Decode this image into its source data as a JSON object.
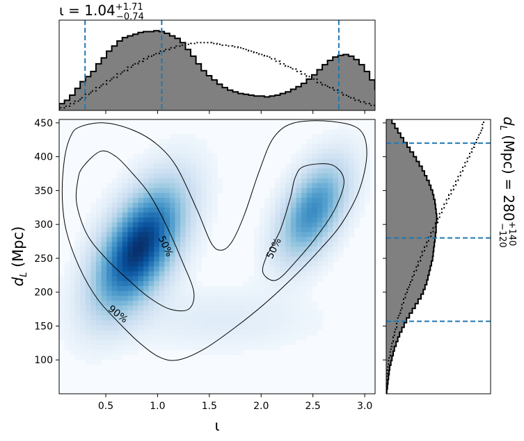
{
  "chart_data": {
    "type": "corner",
    "main_panel": {
      "kind": "2d-density-with-contours",
      "colormap": "Blues",
      "x_label": "ι",
      "y_label_symbol": "d",
      "y_label_sub": "L",
      "y_label_unit": "(Mpc)",
      "xlim": [
        0.05,
        3.1
      ],
      "ylim": [
        50,
        455
      ],
      "x_ticks": [
        0.5,
        1.0,
        1.5,
        2.0,
        2.5,
        3.0
      ],
      "x_tick_labels": [
        "0.5",
        "1.0",
        "1.5",
        "2.0",
        "2.5",
        "3.0"
      ],
      "y_ticks": [
        100,
        150,
        200,
        250,
        300,
        350,
        400,
        450
      ],
      "y_tick_labels": [
        "100",
        "150",
        "200",
        "250",
        "300",
        "350",
        "400",
        "450"
      ],
      "density_peaks": [
        {
          "x": 0.82,
          "y": 265,
          "sx": 0.28,
          "sy": 60,
          "rho": 0.55,
          "weight": 1.0
        },
        {
          "x": 2.5,
          "y": 320,
          "sx": 0.22,
          "sy": 48,
          "rho": 0.5,
          "weight": 0.6
        },
        {
          "x": 1.6,
          "y": 160,
          "sx": 0.6,
          "sy": 30,
          "rho": 0.0,
          "weight": 0.08
        }
      ],
      "contours": [
        {
          "label": "90%",
          "label_x": 0.62,
          "label_y": 168,
          "points": [
            [
              0.25,
              444
            ],
            [
              0.48,
              450
            ],
            [
              0.75,
              440
            ],
            [
              0.98,
              420
            ],
            [
              1.18,
              386
            ],
            [
              1.38,
              322
            ],
            [
              1.52,
              272
            ],
            [
              1.62,
              262
            ],
            [
              1.72,
              275
            ],
            [
              1.84,
              315
            ],
            [
              1.98,
              378
            ],
            [
              2.12,
              428
            ],
            [
              2.32,
              450
            ],
            [
              2.68,
              452
            ],
            [
              2.95,
              440
            ],
            [
              3.02,
              405
            ],
            [
              2.95,
              352
            ],
            [
              2.78,
              302
            ],
            [
              2.58,
              265
            ],
            [
              2.35,
              228
            ],
            [
              2.05,
              185
            ],
            [
              1.75,
              148
            ],
            [
              1.45,
              116
            ],
            [
              1.2,
              100
            ],
            [
              1.02,
              104
            ],
            [
              0.82,
              126
            ],
            [
              0.62,
              156
            ],
            [
              0.42,
              190
            ],
            [
              0.25,
              235
            ],
            [
              0.12,
              290
            ],
            [
              0.08,
              340
            ],
            [
              0.1,
              395
            ],
            [
              0.16,
              430
            ]
          ]
        },
        {
          "label": "50%",
          "label_x": 1.08,
          "label_y": 268,
          "points": [
            [
              0.28,
              385
            ],
            [
              0.45,
              408
            ],
            [
              0.6,
              400
            ],
            [
              0.76,
              375
            ],
            [
              0.92,
              345
            ],
            [
              1.08,
              300
            ],
            [
              1.24,
              245
            ],
            [
              1.35,
              200
            ],
            [
              1.3,
              175
            ],
            [
              1.12,
              175
            ],
            [
              0.92,
              192
            ],
            [
              0.72,
              218
            ],
            [
              0.5,
              250
            ],
            [
              0.32,
              285
            ],
            [
              0.22,
              330
            ],
            [
              0.23,
              365
            ]
          ]
        },
        {
          "label": "50%",
          "label_x": 2.12,
          "label_y": 265,
          "points": [
            [
              2.42,
              386
            ],
            [
              2.68,
              388
            ],
            [
              2.8,
              365
            ],
            [
              2.72,
              325
            ],
            [
              2.55,
              285
            ],
            [
              2.35,
              248
            ],
            [
              2.15,
              218
            ],
            [
              2.02,
              228
            ],
            [
              2.05,
              252
            ],
            [
              2.18,
              290
            ],
            [
              2.28,
              338
            ],
            [
              2.33,
              370
            ]
          ]
        }
      ]
    },
    "top_panel": {
      "kind": "step-histogram",
      "title_symbol": "ι",
      "title_text": " = 1.04",
      "title_upper": "+1.71",
      "title_lower": "−0.74",
      "x_start": 0.05,
      "bin_width": 0.0508,
      "posterior_hist": [
        0.08,
        0.12,
        0.18,
        0.26,
        0.34,
        0.4,
        0.46,
        0.55,
        0.62,
        0.7,
        0.76,
        0.82,
        0.86,
        0.88,
        0.9,
        0.92,
        0.93,
        0.93,
        0.94,
        0.93,
        0.91,
        0.88,
        0.85,
        0.8,
        0.72,
        0.64,
        0.55,
        0.47,
        0.41,
        0.36,
        0.31,
        0.27,
        0.24,
        0.22,
        0.2,
        0.19,
        0.18,
        0.17,
        0.17,
        0.16,
        0.17,
        0.18,
        0.2,
        0.22,
        0.25,
        0.28,
        0.32,
        0.37,
        0.42,
        0.48,
        0.54,
        0.59,
        0.63,
        0.65,
        0.66,
        0.64,
        0.6,
        0.54,
        0.46,
        0.36,
        0.25,
        0.14
      ],
      "prior_hist": [
        0.03,
        0.05,
        0.08,
        0.11,
        0.15,
        0.19,
        0.23,
        0.27,
        0.31,
        0.35,
        0.39,
        0.43,
        0.47,
        0.51,
        0.55,
        0.58,
        0.61,
        0.64,
        0.67,
        0.7,
        0.72,
        0.74,
        0.76,
        0.77,
        0.78,
        0.79,
        0.8,
        0.8,
        0.8,
        0.79,
        0.78,
        0.77,
        0.76,
        0.75,
        0.74,
        0.72,
        0.7,
        0.68,
        0.66,
        0.64,
        0.61,
        0.58,
        0.55,
        0.52,
        0.49,
        0.46,
        0.43,
        0.4,
        0.37,
        0.33,
        0.3,
        0.27,
        0.24,
        0.21,
        0.18,
        0.15,
        0.12,
        0.1,
        0.08,
        0.06,
        0.04,
        0.02
      ],
      "ymax": 1.0,
      "quantile_lines": [
        0.3,
        1.04,
        2.75
      ],
      "fill_color": "#808080",
      "line_color": "#1f77b4"
    },
    "right_panel": {
      "kind": "step-histogram-horizontal",
      "title_symbol": "d",
      "title_sub": "L",
      "title_text": " (Mpc) = 280",
      "title_upper": "+140",
      "title_lower": "−120",
      "y_start": 50,
      "bin_width": 7.0,
      "posterior_hist": [
        0.01,
        0.02,
        0.03,
        0.04,
        0.05,
        0.06,
        0.08,
        0.1,
        0.12,
        0.14,
        0.17,
        0.2,
        0.23,
        0.27,
        0.31,
        0.35,
        0.4,
        0.45,
        0.5,
        0.55,
        0.6,
        0.64,
        0.67,
        0.7,
        0.72,
        0.74,
        0.76,
        0.78,
        0.8,
        0.81,
        0.82,
        0.83,
        0.84,
        0.85,
        0.86,
        0.86,
        0.87,
        0.87,
        0.86,
        0.85,
        0.84,
        0.82,
        0.8,
        0.77,
        0.74,
        0.7,
        0.66,
        0.62,
        0.57,
        0.52,
        0.47,
        0.41,
        0.36,
        0.3,
        0.25,
        0.2,
        0.15,
        0.1
      ],
      "prior_hist": [
        0.0,
        0.0,
        0.01,
        0.01,
        0.02,
        0.03,
        0.04,
        0.05,
        0.07,
        0.08,
        0.1,
        0.12,
        0.14,
        0.16,
        0.18,
        0.2,
        0.22,
        0.25,
        0.27,
        0.3,
        0.33,
        0.36,
        0.39,
        0.42,
        0.45,
        0.48,
        0.52,
        0.55,
        0.59,
        0.62,
        0.66,
        0.7,
        0.73,
        0.77,
        0.81,
        0.85,
        0.89,
        0.92,
        0.96,
        1.0,
        1.04,
        1.08,
        1.12,
        1.16,
        1.2,
        1.24,
        1.28,
        1.32,
        1.36,
        1.4,
        1.44,
        1.48,
        1.52,
        1.56,
        1.6,
        1.64,
        1.66,
        1.68
      ],
      "xmax": 1.8,
      "quantile_lines": [
        157,
        280,
        420
      ],
      "fill_color": "#808080",
      "line_color": "#1f77b4"
    }
  }
}
